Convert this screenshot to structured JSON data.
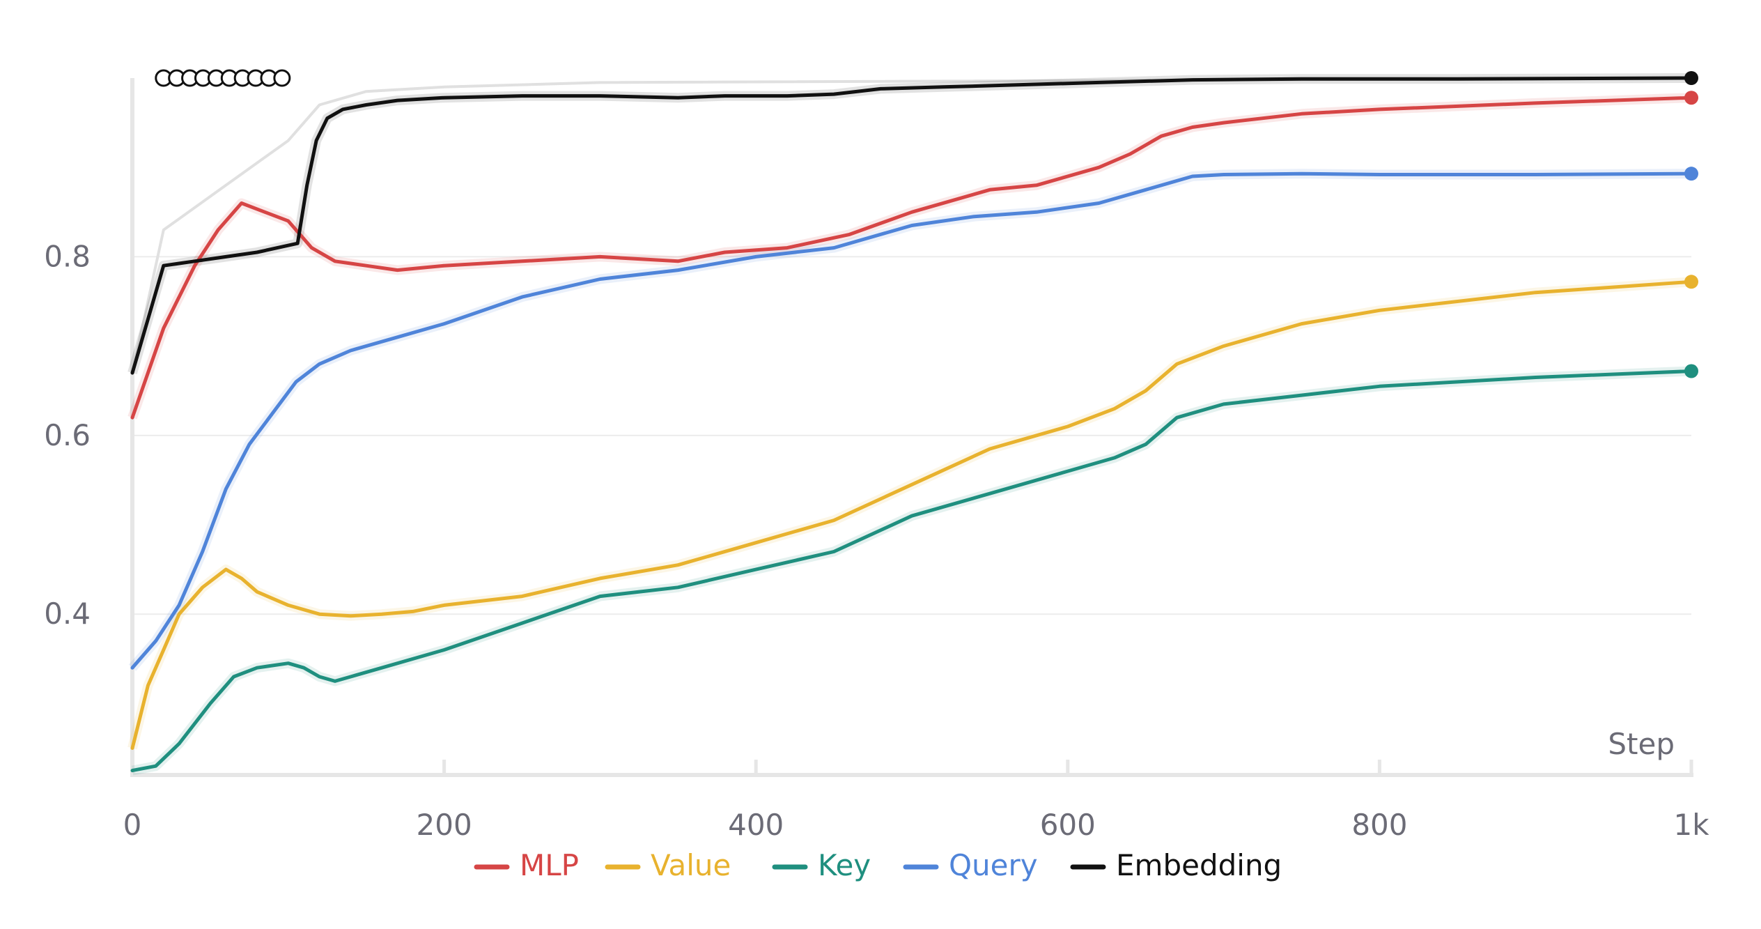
{
  "chart_data": {
    "type": "line",
    "title": "",
    "xlabel": "Step",
    "ylabel": "",
    "xlim": [
      0,
      1000
    ],
    "ylim": [
      0.22,
      1.0
    ],
    "x_ticks": [
      {
        "value": 0,
        "label": "0"
      },
      {
        "value": 200,
        "label": "200"
      },
      {
        "value": 400,
        "label": "400"
      },
      {
        "value": 600,
        "label": "600"
      },
      {
        "value": 800,
        "label": "800"
      },
      {
        "value": 1000,
        "label": "1k"
      }
    ],
    "y_ticks": [
      {
        "value": 0.4,
        "label": "0.4"
      },
      {
        "value": 0.6,
        "label": "0.6"
      },
      {
        "value": 0.8,
        "label": "0.8"
      }
    ],
    "grid": true,
    "legend_position": "bottom",
    "series": [
      {
        "name": "MLP",
        "color": "#d64545",
        "x": [
          0,
          20,
          40,
          55,
          70,
          85,
          100,
          115,
          130,
          150,
          170,
          200,
          250,
          300,
          350,
          380,
          420,
          460,
          500,
          550,
          580,
          620,
          640,
          660,
          680,
          700,
          750,
          800,
          900,
          1000
        ],
        "values": [
          0.62,
          0.72,
          0.79,
          0.83,
          0.86,
          0.85,
          0.84,
          0.81,
          0.795,
          0.79,
          0.785,
          0.79,
          0.795,
          0.8,
          0.795,
          0.805,
          0.81,
          0.825,
          0.85,
          0.875,
          0.88,
          0.9,
          0.915,
          0.935,
          0.945,
          0.95,
          0.96,
          0.965,
          0.972,
          0.978
        ]
      },
      {
        "name": "Value",
        "color": "#e8b22e",
        "x": [
          0,
          10,
          20,
          30,
          45,
          60,
          70,
          80,
          100,
          120,
          140,
          160,
          180,
          200,
          250,
          300,
          350,
          400,
          450,
          500,
          550,
          600,
          630,
          650,
          670,
          700,
          750,
          800,
          900,
          1000
        ],
        "values": [
          0.25,
          0.32,
          0.36,
          0.4,
          0.43,
          0.45,
          0.44,
          0.425,
          0.41,
          0.4,
          0.398,
          0.4,
          0.403,
          0.41,
          0.42,
          0.44,
          0.455,
          0.48,
          0.505,
          0.545,
          0.585,
          0.61,
          0.63,
          0.65,
          0.68,
          0.7,
          0.725,
          0.74,
          0.76,
          0.772
        ]
      },
      {
        "name": "Key",
        "color": "#1f8f7f",
        "x": [
          0,
          15,
          30,
          50,
          65,
          80,
          100,
          110,
          120,
          130,
          140,
          160,
          200,
          250,
          300,
          350,
          400,
          450,
          500,
          550,
          600,
          630,
          650,
          670,
          700,
          750,
          800,
          900,
          1000
        ],
        "values": [
          0.225,
          0.23,
          0.255,
          0.3,
          0.33,
          0.34,
          0.345,
          0.34,
          0.33,
          0.325,
          0.33,
          0.34,
          0.36,
          0.39,
          0.42,
          0.43,
          0.45,
          0.47,
          0.51,
          0.535,
          0.56,
          0.575,
          0.59,
          0.62,
          0.635,
          0.645,
          0.655,
          0.665,
          0.672
        ]
      },
      {
        "name": "Query",
        "color": "#4f84d9",
        "x": [
          0,
          15,
          30,
          45,
          60,
          75,
          90,
          105,
          120,
          140,
          170,
          200,
          250,
          300,
          350,
          400,
          450,
          500,
          540,
          580,
          620,
          650,
          680,
          700,
          750,
          800,
          900,
          1000
        ],
        "values": [
          0.34,
          0.37,
          0.41,
          0.47,
          0.54,
          0.59,
          0.625,
          0.66,
          0.68,
          0.695,
          0.71,
          0.725,
          0.755,
          0.775,
          0.785,
          0.8,
          0.81,
          0.835,
          0.845,
          0.85,
          0.86,
          0.875,
          0.89,
          0.892,
          0.893,
          0.892,
          0.892,
          0.893
        ]
      },
      {
        "name": "Embedding",
        "color": "#111111",
        "x": [
          0,
          5,
          20,
          40,
          60,
          80,
          106,
          112,
          118,
          125,
          135,
          150,
          170,
          200,
          250,
          300,
          350,
          380,
          420,
          450,
          480,
          520,
          560,
          620,
          680,
          750,
          850,
          1000
        ],
        "values": [
          0.67,
          0.7,
          0.79,
          0.795,
          0.8,
          0.805,
          0.815,
          0.88,
          0.93,
          0.955,
          0.965,
          0.97,
          0.975,
          0.978,
          0.98,
          0.98,
          0.978,
          0.98,
          0.98,
          0.982,
          0.988,
          0.99,
          0.992,
          0.995,
          0.998,
          0.999,
          0.999,
          1.0
        ]
      }
    ],
    "raw_trace": {
      "name": "Embedding raw",
      "color": "#e0e0e0",
      "x": [
        0,
        20,
        60,
        100,
        120,
        150,
        200,
        300,
        1000
      ],
      "values": [
        0.67,
        0.83,
        0.88,
        0.93,
        0.97,
        0.985,
        0.99,
        0.995,
        1.0
      ]
    },
    "annotation_markers": {
      "count": 10,
      "x_start": 20,
      "x_end": 96,
      "y": 1.0
    }
  }
}
